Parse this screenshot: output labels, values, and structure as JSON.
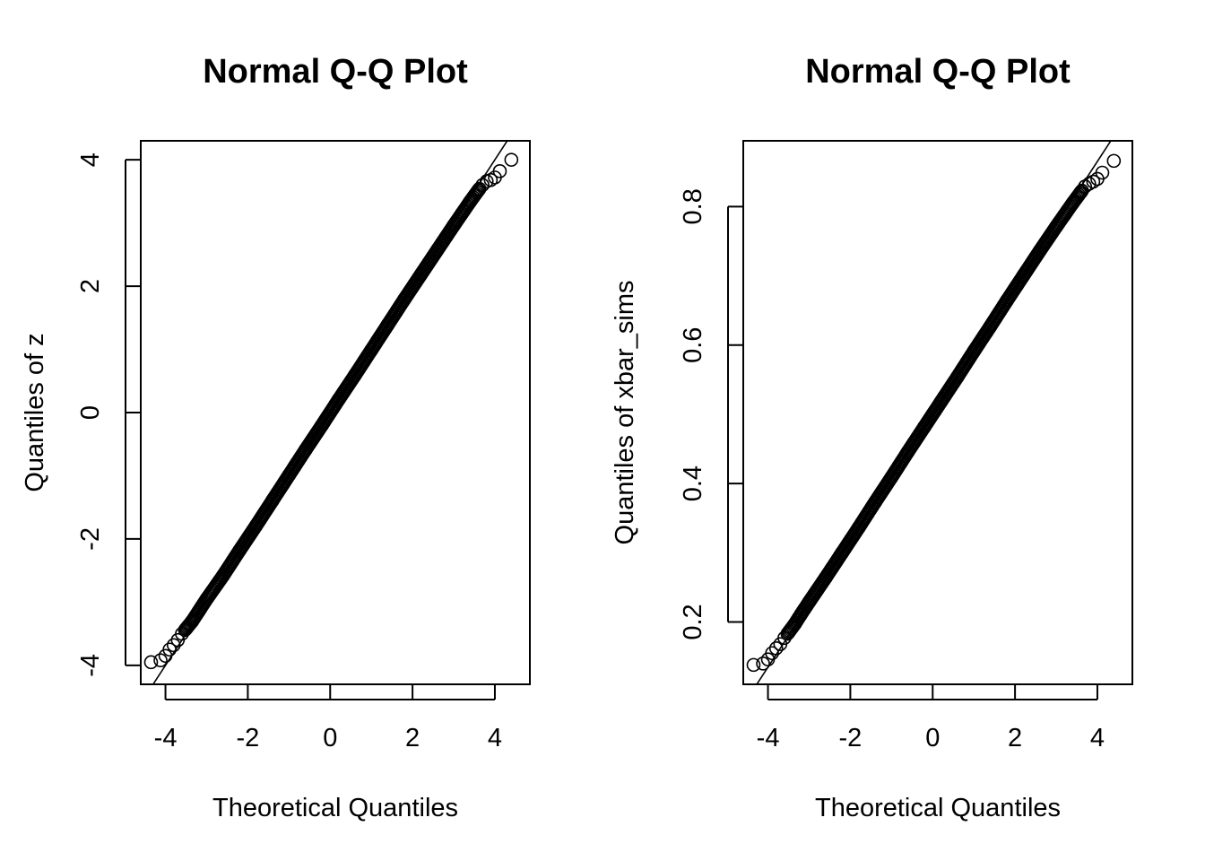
{
  "chart_data": [
    {
      "type": "scatter",
      "title": "Normal Q-Q Plot",
      "xlabel": "Theoretical Quantiles",
      "ylabel": "Quantiles of z",
      "xlim": [
        -4.6,
        4.85
      ],
      "ylim": [
        -4.3,
        4.3
      ],
      "x_ticks": [
        -4,
        -2,
        0,
        2,
        4
      ],
      "y_ticks": [
        -4,
        -2,
        0,
        2,
        4
      ],
      "y_tick_labels": [
        "-4",
        "-2",
        "0",
        "2",
        "4"
      ],
      "grid": false,
      "reference_line": {
        "intercept": 0,
        "slope": 1
      },
      "series": [
        {
          "marker": "open-circle",
          "x": [
            -4.35,
            -4.12,
            -4.0,
            -3.9,
            -3.8,
            -3.7,
            -3.6,
            -3.5,
            -3.35,
            -3.2,
            -3.0,
            -2.6,
            -2.2,
            -1.8,
            -1.4,
            -1.0,
            -0.6,
            -0.2,
            0.2,
            0.6,
            1.0,
            1.4,
            1.8,
            2.2,
            2.6,
            3.0,
            3.2,
            3.4,
            3.6,
            3.7,
            3.8,
            3.9,
            4.0,
            4.12,
            4.4
          ],
          "y": [
            -3.95,
            -3.92,
            -3.85,
            -3.75,
            -3.68,
            -3.6,
            -3.5,
            -3.42,
            -3.3,
            -3.15,
            -2.95,
            -2.58,
            -2.18,
            -1.79,
            -1.39,
            -0.99,
            -0.59,
            -0.2,
            0.2,
            0.59,
            0.99,
            1.39,
            1.79,
            2.18,
            2.57,
            2.96,
            3.15,
            3.34,
            3.52,
            3.6,
            3.66,
            3.68,
            3.72,
            3.82,
            4.0
          ]
        }
      ]
    },
    {
      "type": "scatter",
      "title": "Normal Q-Q Plot",
      "xlabel": "Theoretical Quantiles",
      "ylabel": "Quantiles of xbar_sims",
      "xlim": [
        -4.6,
        4.85
      ],
      "ylim": [
        0.11,
        0.895
      ],
      "x_ticks": [
        -4,
        -2,
        0,
        2,
        4
      ],
      "y_ticks": [
        0.2,
        0.4,
        0.6,
        0.8
      ],
      "y_tick_labels": [
        "0.2",
        "0.4",
        "0.6",
        "0.8"
      ],
      "grid": false,
      "reference_line": {
        "intercept": 0.5,
        "slope": 0.0913
      },
      "series": [
        {
          "marker": "open-circle",
          "x": [
            -4.35,
            -4.12,
            -4.0,
            -3.9,
            -3.8,
            -3.7,
            -3.6,
            -3.5,
            -3.35,
            -3.2,
            -3.0,
            -2.6,
            -2.2,
            -1.8,
            -1.4,
            -1.0,
            -0.6,
            -0.2,
            0.2,
            0.6,
            1.0,
            1.4,
            1.8,
            2.2,
            2.6,
            3.0,
            3.2,
            3.4,
            3.6,
            3.7,
            3.8,
            3.9,
            4.0,
            4.12,
            4.4
          ],
          "y": [
            0.138,
            0.14,
            0.146,
            0.155,
            0.162,
            0.168,
            0.177,
            0.185,
            0.197,
            0.211,
            0.229,
            0.264,
            0.3,
            0.336,
            0.373,
            0.409,
            0.446,
            0.482,
            0.518,
            0.554,
            0.591,
            0.627,
            0.664,
            0.7,
            0.736,
            0.771,
            0.788,
            0.805,
            0.821,
            0.829,
            0.833,
            0.836,
            0.84,
            0.849,
            0.866
          ]
        }
      ]
    }
  ]
}
